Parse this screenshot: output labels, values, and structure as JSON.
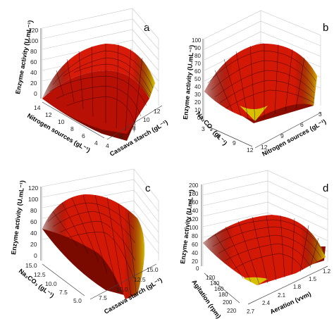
{
  "figure": {
    "panels": [
      {
        "letter": "a",
        "zlabel": "Enzyme activity (U.mL⁻¹)",
        "xlabel": "Cassava starch (gL⁻¹)",
        "ylabel": "Nitrogen sources (gL⁻¹)"
      },
      {
        "letter": "b",
        "zlabel": "Enzyme activity (U.mL⁻¹)",
        "xlabel": "Nitrogen sources (gL⁻¹)",
        "ylabel": "Na₂CO₃ (gL⁻¹)"
      },
      {
        "letter": "c",
        "zlabel": "Enzyme activity (U.mL⁻¹)",
        "xlabel": "Cassava starch (gL⁻¹)",
        "ylabel": "Na₂CO₃ (gL⁻¹)"
      },
      {
        "letter": "d",
        "zlabel": "Enzyme activity (U.mL⁻¹)",
        "xlabel": "Aeration (vvm)",
        "ylabel": "Agitation (rpm)"
      }
    ]
  },
  "chart_data": [
    {
      "type": "surface",
      "panel": "a",
      "x_ticks": [
        "4",
        "6",
        "8",
        "10",
        "12"
      ],
      "y_ticks": [
        "4",
        "6",
        "8",
        "10",
        "12",
        "14"
      ],
      "z_ticks": [
        "0",
        "20",
        "40",
        "60",
        "80",
        "100",
        "120"
      ],
      "x_range": [
        4,
        12
      ],
      "y_range": [
        4,
        14
      ],
      "z_range": [
        0,
        120
      ],
      "peak_z": 100,
      "grid": true
    },
    {
      "type": "surface",
      "panel": "b",
      "x_ticks": [
        "3",
        "6",
        "9",
        "12"
      ],
      "y_ticks": [
        "12",
        "9",
        "6",
        "3"
      ],
      "z_ticks": [
        "0",
        "10",
        "20",
        "30",
        "40",
        "50",
        "60",
        "70",
        "80",
        "90",
        "100"
      ],
      "x_range": [
        3,
        12
      ],
      "y_range": [
        3,
        12
      ],
      "z_range": [
        0,
        100
      ],
      "peak_z": 95,
      "grid": true
    },
    {
      "type": "surface",
      "panel": "c",
      "x_ticks": [
        "5.0",
        "7.5",
        "10.0",
        "12.5",
        "15.0"
      ],
      "y_ticks": [
        "5.0",
        "7.5",
        "10.0",
        "12.5",
        "15.0"
      ],
      "z_ticks": [
        "0",
        "20",
        "40",
        "60",
        "80",
        "100",
        "120"
      ],
      "x_range": [
        5,
        15
      ],
      "y_range": [
        5,
        15
      ],
      "z_range": [
        0,
        120
      ],
      "peak_z": 85,
      "grid": true
    },
    {
      "type": "surface",
      "panel": "d",
      "x_ticks": [
        "2.7",
        "2.4",
        "2.1",
        "1.8",
        "1.5",
        "1.2"
      ],
      "y_ticks": [
        "220",
        "200",
        "180",
        "160",
        "140",
        "120"
      ],
      "z_ticks": [
        "0",
        "20",
        "40",
        "60",
        "80",
        "100",
        "120",
        "140",
        "160",
        "180",
        "200"
      ],
      "x_range": [
        1.2,
        2.7
      ],
      "y_range": [
        120,
        220
      ],
      "z_range": [
        0,
        200
      ],
      "peak_z": 120,
      "grid": true
    }
  ]
}
